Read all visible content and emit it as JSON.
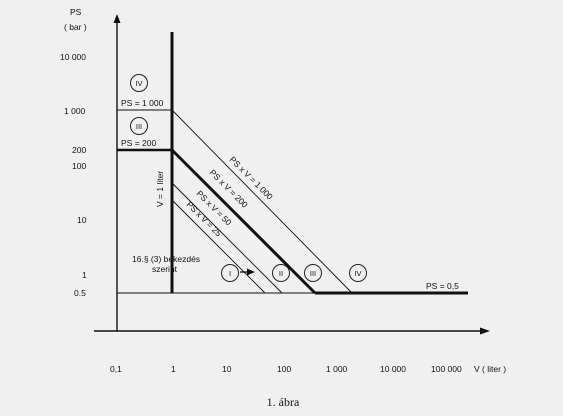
{
  "axis": {
    "y_title": "PS",
    "y_unit": "( bar )",
    "x_title": "V ( liter )",
    "y_ticks": [
      "10 000",
      "1 000",
      "200",
      "100",
      "10",
      "1",
      "0.5"
    ],
    "x_ticks": [
      "0,1",
      "1",
      "10",
      "100",
      "1 000",
      "10 000",
      "100 000"
    ]
  },
  "labels": {
    "ps_1000": "PS = 1 000",
    "ps_200": "PS = 200",
    "ps_05": "PS = 0,5",
    "v_1": "V = 1 liter",
    "psv_1000": "PS x V = 1 000",
    "psv_200": "PS x V = 200",
    "psv_50": "PS x V = 50",
    "psv_25": "PS x V = 25",
    "note_line1": "16.§ (3) bekezdés",
    "note_line2": "szerint"
  },
  "categories": {
    "iv_top": "IV",
    "iii_top": "III",
    "i": "I",
    "ii": "II",
    "iii": "III",
    "iv": "IV"
  },
  "caption": "1. ábra"
}
